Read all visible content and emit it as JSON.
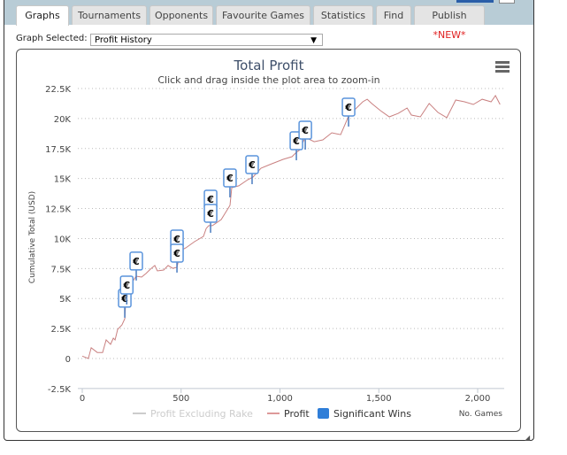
{
  "tabs": [
    {
      "label": "Graphs",
      "active": true
    },
    {
      "label": "Tournaments"
    },
    {
      "label": "Opponents"
    },
    {
      "label": "Favourite Games"
    },
    {
      "label": "Statistics"
    },
    {
      "label": "Find"
    },
    {
      "label": "Publish",
      "badge": "*NEW*"
    }
  ],
  "graph_selector": {
    "label": "Graph Selected:",
    "value": "Profit History",
    "arrow": "▼"
  },
  "menu_icon": "hamburger-icon",
  "colors": {
    "profit": "#c98080",
    "flag_border": "#4a8ad8",
    "legend_wins": "#2f7ed8",
    "excl_rake": "#cccccc",
    "tabbar": "#b8ccd6"
  },
  "chart_data": {
    "type": "line",
    "title": "Total Profit",
    "subtitle": "Click and drag inside the plot area to zoom-in",
    "xlabel": "No. Games",
    "ylabel": "Cumulative Total (USD)",
    "xlim": [
      0,
      2150
    ],
    "ylim": [
      -2500,
      22500
    ],
    "grid": true,
    "legend_position": "bottom",
    "x_ticks": [
      {
        "v": 0,
        "label": "0"
      },
      {
        "v": 500,
        "label": "500"
      },
      {
        "v": 1000,
        "label": "1,000"
      },
      {
        "v": 1500,
        "label": "1,500"
      },
      {
        "v": 2000,
        "label": "2,000"
      }
    ],
    "y_ticks": [
      {
        "v": 22500,
        "label": "22.5K"
      },
      {
        "v": 20000,
        "label": "20K"
      },
      {
        "v": 17500,
        "label": "17.5K"
      },
      {
        "v": 15000,
        "label": "15K"
      },
      {
        "v": 12500,
        "label": "12.5K"
      },
      {
        "v": 10000,
        "label": "10K"
      },
      {
        "v": 7500,
        "label": "7.5K"
      },
      {
        "v": 5000,
        "label": "5K"
      },
      {
        "v": 2500,
        "label": "2.5K"
      },
      {
        "v": 0,
        "label": "0"
      },
      {
        "v": -2500,
        "label": "-2.5K"
      }
    ],
    "legend": [
      {
        "name": "Profit Excluding Rake",
        "hidden": true
      },
      {
        "name": "Profit"
      },
      {
        "name": "Significant Wins"
      }
    ],
    "series": [
      {
        "name": "Profit",
        "points": [
          [
            0,
            200
          ],
          [
            31,
            0
          ],
          [
            45,
            900
          ],
          [
            76,
            500
          ],
          [
            103,
            500
          ],
          [
            121,
            1550
          ],
          [
            143,
            1180
          ],
          [
            157,
            1700
          ],
          [
            166,
            1550
          ],
          [
            179,
            2430
          ],
          [
            201,
            2800
          ],
          [
            215,
            3320
          ],
          [
            219,
            4430
          ],
          [
            233,
            5160
          ],
          [
            255,
            6420
          ],
          [
            273,
            6860
          ],
          [
            300,
            6790
          ],
          [
            322,
            7080
          ],
          [
            345,
            7450
          ],
          [
            367,
            7750
          ],
          [
            380,
            7300
          ],
          [
            412,
            7380
          ],
          [
            434,
            7750
          ],
          [
            457,
            7520
          ],
          [
            479,
            7600
          ],
          [
            497,
            9000
          ],
          [
            524,
            9220
          ],
          [
            568,
            9740
          ],
          [
            613,
            10180
          ],
          [
            627,
            10840
          ],
          [
            640,
            11070
          ],
          [
            658,
            11070
          ],
          [
            703,
            11580
          ],
          [
            747,
            12760
          ],
          [
            756,
            14240
          ],
          [
            792,
            14390
          ],
          [
            837,
            14900
          ],
          [
            864,
            15120
          ],
          [
            904,
            15860
          ],
          [
            949,
            16160
          ],
          [
            1016,
            16600
          ],
          [
            1061,
            16820
          ],
          [
            1083,
            17190
          ],
          [
            1097,
            17340
          ],
          [
            1128,
            18440
          ],
          [
            1173,
            18070
          ],
          [
            1217,
            18220
          ],
          [
            1262,
            18810
          ],
          [
            1307,
            18660
          ],
          [
            1338,
            19840
          ],
          [
            1352,
            20430
          ],
          [
            1374,
            20660
          ],
          [
            1419,
            21390
          ],
          [
            1441,
            21610
          ],
          [
            1464,
            21250
          ],
          [
            1508,
            20660
          ],
          [
            1553,
            20140
          ],
          [
            1598,
            20430
          ],
          [
            1643,
            20880
          ],
          [
            1665,
            20290
          ],
          [
            1710,
            20140
          ],
          [
            1755,
            21250
          ],
          [
            1799,
            20510
          ],
          [
            1844,
            20070
          ],
          [
            1889,
            21540
          ],
          [
            1934,
            21390
          ],
          [
            1978,
            21170
          ],
          [
            2023,
            21610
          ],
          [
            2068,
            21390
          ],
          [
            2090,
            21910
          ],
          [
            2113,
            21170
          ]
        ]
      }
    ],
    "significant_wins": [
      {
        "game": 215,
        "value": 3400,
        "symbol": "€"
      },
      {
        "game": 225,
        "value": 4500,
        "symbol": "€"
      },
      {
        "game": 273,
        "value": 6500,
        "symbol": "€"
      },
      {
        "game": 479,
        "value": 8340,
        "symbol": "€"
      },
      {
        "game": 479,
        "value": 7160,
        "symbol": "€"
      },
      {
        "game": 649,
        "value": 11660,
        "symbol": "€"
      },
      {
        "game": 649,
        "value": 10480,
        "symbol": "€"
      },
      {
        "game": 747,
        "value": 13430,
        "symbol": "€"
      },
      {
        "game": 859,
        "value": 14530,
        "symbol": "€"
      },
      {
        "game": 1083,
        "value": 16520,
        "symbol": "€"
      },
      {
        "game": 1128,
        "value": 17410,
        "symbol": "€"
      },
      {
        "game": 1347,
        "value": 19330,
        "symbol": "€"
      }
    ]
  }
}
